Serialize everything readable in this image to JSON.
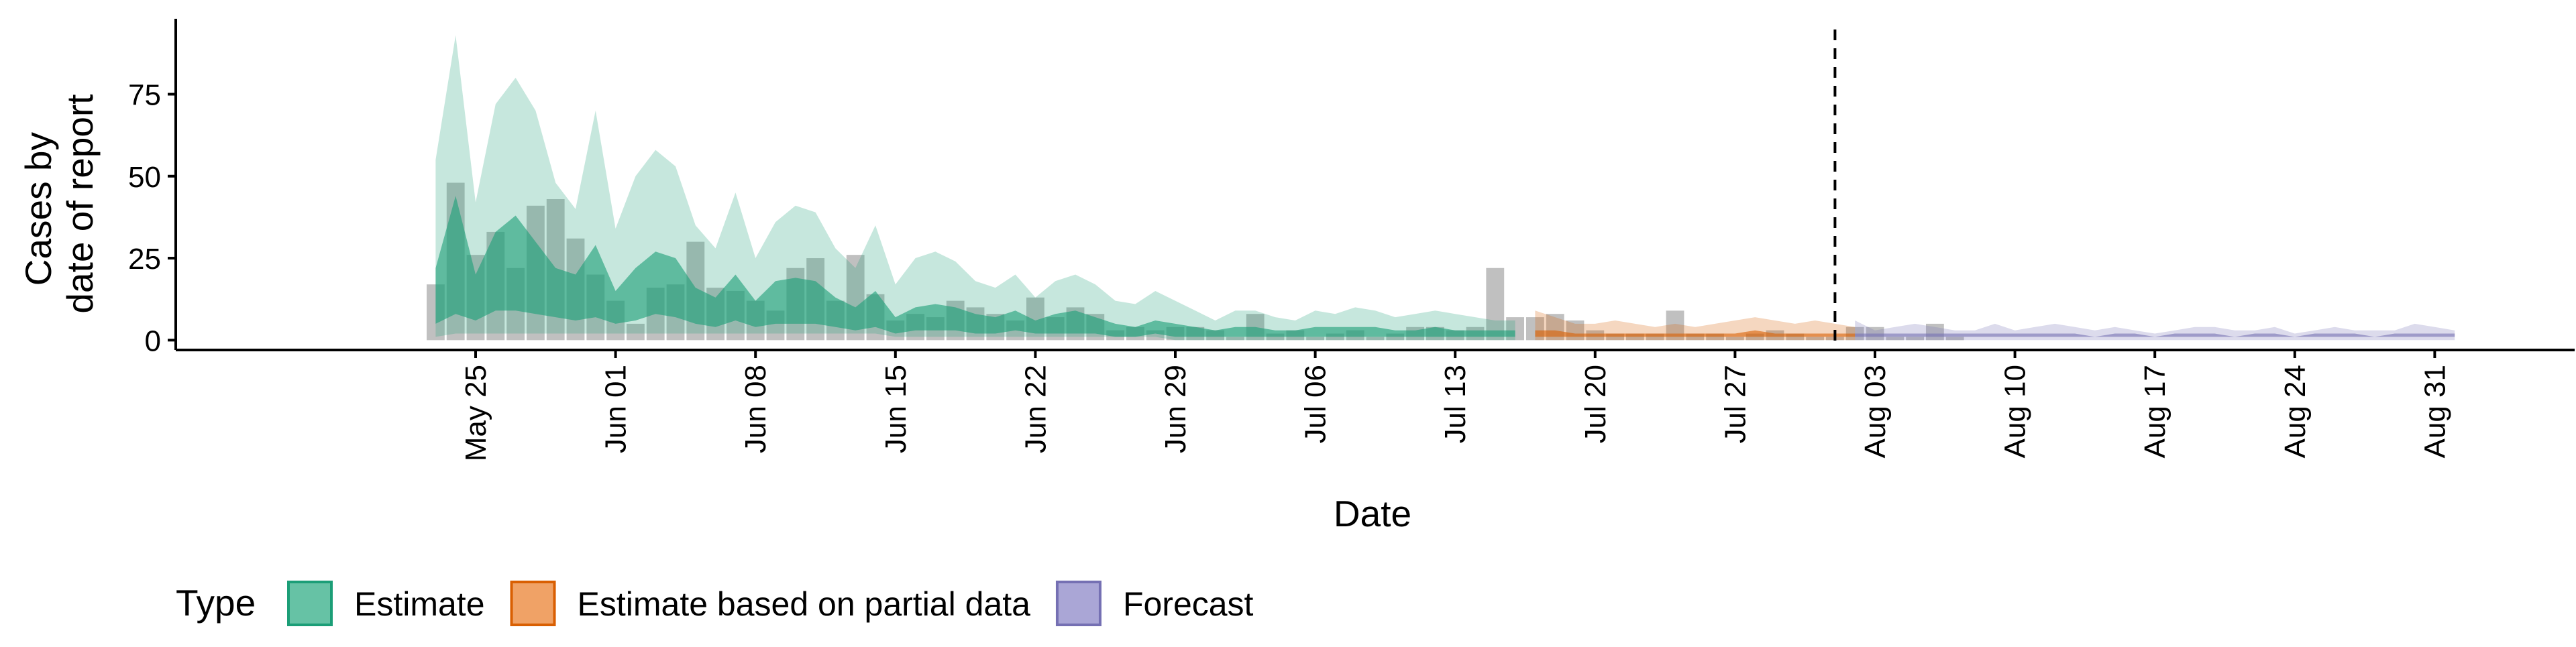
{
  "chart_data": {
    "type": "area",
    "title": "",
    "xlabel": "Date",
    "ylabel_lines": [
      "Cases by",
      "date of report"
    ],
    "x_range": [
      "2020-05-10",
      "2020-09-07"
    ],
    "ylim": [
      -3,
      98
    ],
    "y_ticks": [
      0,
      25,
      50,
      75
    ],
    "x_ticks": [
      {
        "date": "2020-05-25",
        "label": "May 25"
      },
      {
        "date": "2020-06-01",
        "label": "Jun 01"
      },
      {
        "date": "2020-06-08",
        "label": "Jun 08"
      },
      {
        "date": "2020-06-15",
        "label": "Jun 15"
      },
      {
        "date": "2020-06-22",
        "label": "Jun 22"
      },
      {
        "date": "2020-06-29",
        "label": "Jun 29"
      },
      {
        "date": "2020-07-06",
        "label": "Jul 06"
      },
      {
        "date": "2020-07-13",
        "label": "Jul 13"
      },
      {
        "date": "2020-07-20",
        "label": "Jul 20"
      },
      {
        "date": "2020-07-27",
        "label": "Jul 27"
      },
      {
        "date": "2020-08-03",
        "label": "Aug 03"
      },
      {
        "date": "2020-08-10",
        "label": "Aug 10"
      },
      {
        "date": "2020-08-17",
        "label": "Aug 17"
      },
      {
        "date": "2020-08-24",
        "label": "Aug 24"
      },
      {
        "date": "2020-08-31",
        "label": "Aug 31"
      }
    ],
    "vline_date": "2020-08-01",
    "grid": false,
    "legend": {
      "title": "Type",
      "position": "bottom",
      "entries": [
        {
          "label": "Estimate",
          "fill": "#66c2a5",
          "border": "#1b9e77"
        },
        {
          "label": "Estimate based on partial data",
          "fill": "#f0a266",
          "border": "#d95f02"
        },
        {
          "label": "Forecast",
          "fill": "#aaa6d6",
          "border": "#7570b3"
        }
      ]
    },
    "bars": {
      "name": "Reported cases",
      "color": "#8c8c8c",
      "start_date": "2020-05-23",
      "values": [
        17,
        48,
        26,
        33,
        22,
        41,
        43,
        31,
        20,
        12,
        5,
        16,
        17,
        30,
        16,
        15,
        12,
        9,
        22,
        25,
        12,
        26,
        14,
        6,
        8,
        7,
        12,
        10,
        8,
        6,
        13,
        7,
        10,
        8,
        3,
        4,
        3,
        4,
        4,
        3,
        1,
        8,
        2,
        3,
        1,
        2,
        3,
        1,
        2,
        4,
        4,
        3,
        4,
        22,
        7,
        7,
        8,
        6,
        3,
        2,
        2,
        2,
        9,
        2,
        2,
        1,
        2,
        3,
        2,
        1,
        1,
        4,
        4,
        1,
        1,
        5,
        1
      ]
    },
    "series": [
      {
        "name": "Estimate",
        "start_date": "2020-05-23",
        "fill": "#1b9e77",
        "outer_lower": [
          1,
          2,
          2,
          2,
          2,
          2,
          2,
          2,
          2,
          2,
          2,
          2,
          2,
          2,
          2,
          2,
          2,
          2,
          2,
          2,
          2,
          2,
          2,
          1,
          1,
          1,
          1,
          1,
          1,
          1,
          1,
          1,
          1,
          1,
          1,
          1,
          1,
          0,
          0,
          0,
          0,
          0,
          0,
          0,
          0,
          0,
          0,
          0,
          0,
          0,
          0,
          0,
          0,
          0,
          0
        ],
        "outer_upper": [
          55,
          93,
          42,
          72,
          80,
          70,
          48,
          40,
          70,
          34,
          50,
          58,
          53,
          35,
          28,
          45,
          25,
          36,
          41,
          39,
          28,
          22,
          35,
          17,
          25,
          27,
          24,
          18,
          16,
          20,
          13,
          18,
          20,
          17,
          12,
          11,
          15,
          12,
          9,
          6,
          9,
          9,
          7,
          6,
          9,
          8,
          10,
          9,
          7,
          8,
          9,
          8,
          7,
          6,
          6
        ],
        "inner_lower": [
          5,
          8,
          6,
          9,
          9,
          8,
          7,
          6,
          7,
          5,
          6,
          8,
          7,
          5,
          4,
          6,
          4,
          5,
          5,
          5,
          4,
          3,
          4,
          2,
          3,
          3,
          3,
          2,
          2,
          3,
          2,
          2,
          2,
          2,
          1,
          1,
          2,
          1,
          1,
          1,
          1,
          1,
          1,
          1,
          1,
          1,
          1,
          1,
          1,
          1,
          1,
          1,
          1,
          1,
          1
        ],
        "inner_upper": [
          22,
          44,
          20,
          33,
          38,
          30,
          22,
          20,
          29,
          15,
          22,
          27,
          25,
          16,
          13,
          20,
          12,
          18,
          19,
          18,
          13,
          10,
          15,
          7,
          10,
          11,
          10,
          8,
          7,
          9,
          6,
          8,
          9,
          7,
          5,
          4,
          6,
          5,
          4,
          3,
          4,
          4,
          3,
          3,
          4,
          4,
          4,
          4,
          3,
          3,
          4,
          3,
          3,
          3,
          3
        ]
      },
      {
        "name": "Estimate based on partial data",
        "start_date": "2020-07-17",
        "fill": "#d95f02",
        "outer_lower": [
          0,
          0,
          0,
          0,
          0,
          0,
          0,
          0,
          0,
          0,
          0,
          0,
          0,
          0,
          0,
          0,
          0
        ],
        "outer_upper": [
          9,
          7,
          5,
          5,
          6,
          5,
          4,
          5,
          4,
          5,
          6,
          7,
          6,
          5,
          6,
          5,
          4
        ],
        "inner_lower": [
          1,
          1,
          1,
          1,
          1,
          1,
          1,
          1,
          1,
          1,
          1,
          1,
          1,
          1,
          1,
          1,
          1
        ],
        "inner_upper": [
          3,
          3,
          2,
          2,
          2,
          2,
          2,
          2,
          2,
          2,
          2,
          3,
          2,
          2,
          2,
          2,
          2
        ]
      },
      {
        "name": "Forecast",
        "start_date": "2020-08-02",
        "fill": "#7570b3",
        "outer_lower": [
          0,
          0,
          0,
          0,
          0,
          0,
          0,
          0,
          0,
          0,
          0,
          0,
          0,
          0,
          0,
          0,
          0,
          0,
          0,
          0,
          0,
          0,
          0,
          0,
          0,
          0,
          0,
          0,
          0,
          0,
          0
        ],
        "outer_upper": [
          6,
          3,
          4,
          5,
          4,
          3,
          3,
          5,
          3,
          4,
          5,
          4,
          3,
          4,
          3,
          2,
          3,
          4,
          4,
          3,
          3,
          4,
          2,
          3,
          4,
          3,
          3,
          3,
          5,
          4,
          3
        ],
        "inner_lower": [
          1,
          1,
          1,
          1,
          1,
          1,
          1,
          1,
          1,
          1,
          1,
          1,
          1,
          1,
          1,
          1,
          1,
          1,
          1,
          1,
          1,
          1,
          1,
          1,
          1,
          1,
          1,
          1,
          1,
          1,
          1
        ],
        "inner_upper": [
          2,
          2,
          2,
          2,
          2,
          2,
          2,
          2,
          2,
          2,
          2,
          2,
          1,
          2,
          2,
          1,
          2,
          2,
          2,
          1,
          2,
          2,
          1,
          2,
          2,
          2,
          1,
          2,
          2,
          2,
          2
        ]
      }
    ]
  }
}
